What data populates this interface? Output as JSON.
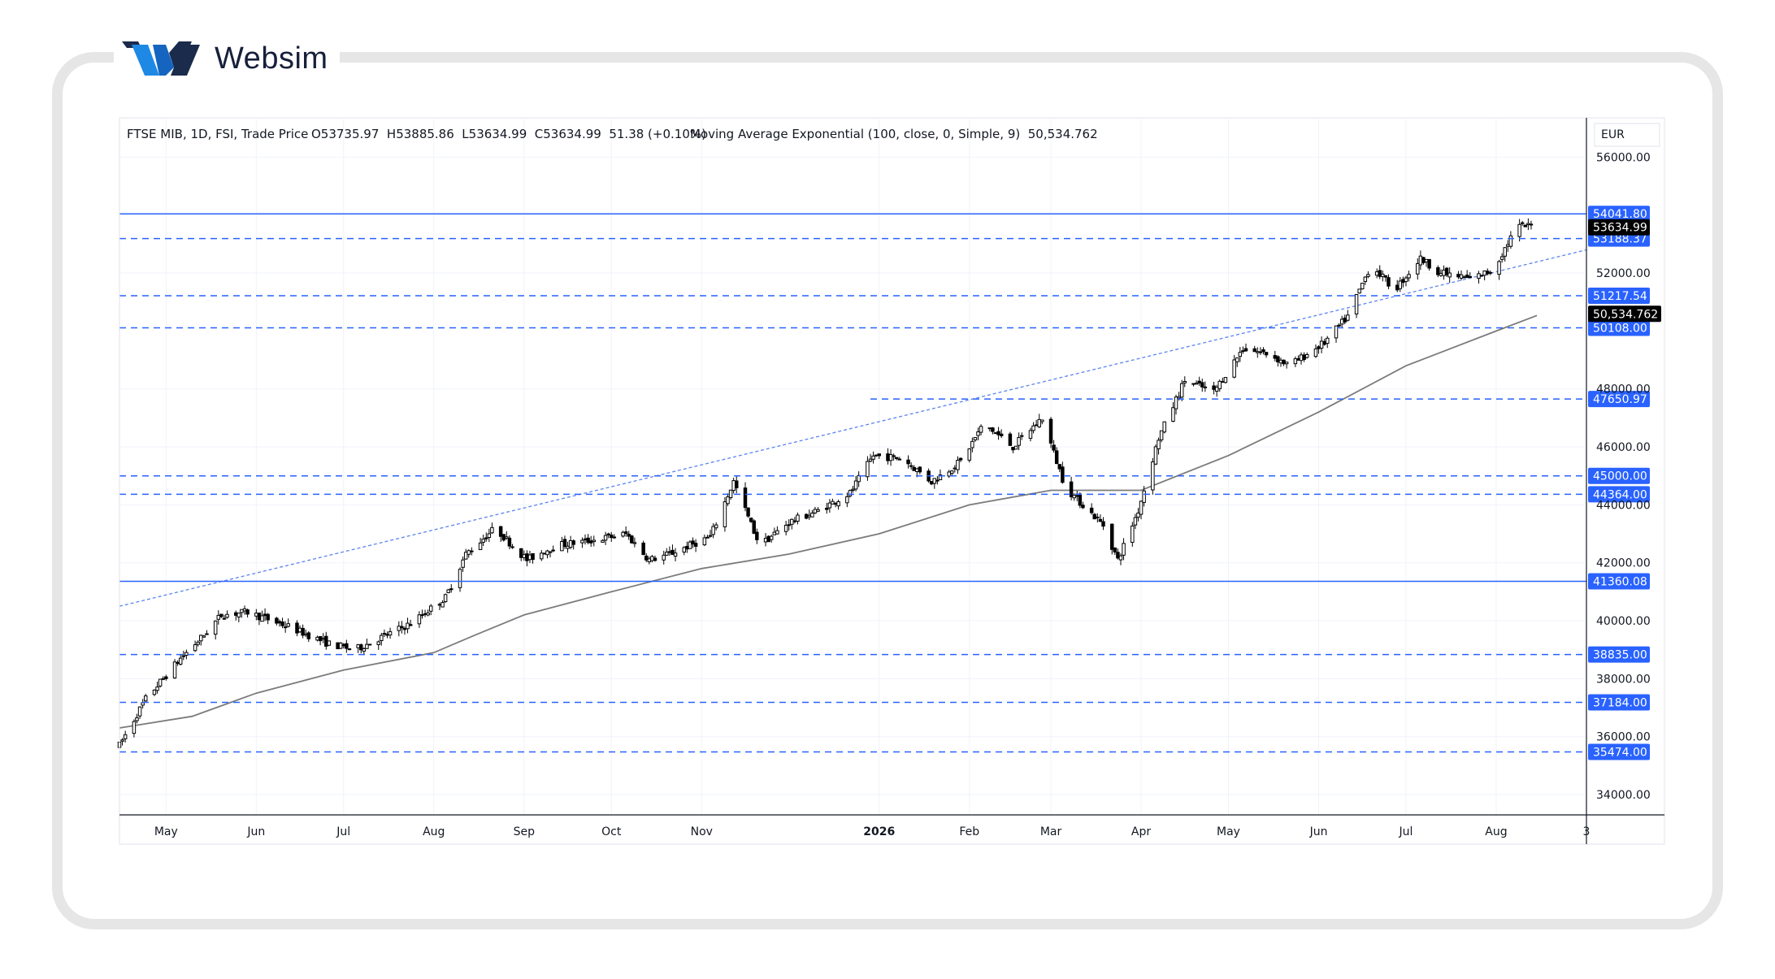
{
  "brand": {
    "name": "Websim"
  },
  "legend": {
    "symbol": "FTSE MIB, 1D, FSI, Trade Price",
    "ohlc": "O53735.97  H53885.86  L53634.99  C53634.99  51.38 (+0.10%)",
    "indicator": "Moving Average Exponential (100, close, 0, Simple, 9)  50,534.762"
  },
  "currency": "EUR",
  "colors": {
    "level_line": "#2962ff",
    "level_label_bg": "#2962ff",
    "price_label_bg": "#000000",
    "ema_line": "#7b7b7b",
    "trendline": "#5b84f0",
    "up_candle": "#ffffff",
    "down_candle": "#000000"
  },
  "chart_data": {
    "type": "candlestick",
    "y_axis": {
      "range": [
        33300,
        57300
      ],
      "ticks": [
        34000,
        36000,
        38000,
        40000,
        42000,
        44000,
        46000,
        48000,
        52000,
        56000
      ],
      "tick_labels": [
        "34000.00",
        "36000.00",
        "38000.00",
        "40000.00",
        "42000.00",
        "44000.00",
        "46000.00",
        "48000.00",
        "52000.00",
        "56000.00"
      ]
    },
    "x_axis": {
      "range": [
        "2025-04-15",
        "2026-09-01"
      ],
      "ticks": [
        {
          "date": "2025-05-01",
          "label": "May"
        },
        {
          "date": "2025-06-01",
          "label": "Jun"
        },
        {
          "date": "2025-07-01",
          "label": "Jul"
        },
        {
          "date": "2025-08-01",
          "label": "Aug"
        },
        {
          "date": "2025-09-01",
          "label": "Sep"
        },
        {
          "date": "2025-10-01",
          "label": "Oct"
        },
        {
          "date": "2025-11-01",
          "label": "Nov"
        },
        {
          "date": "2026-01-01",
          "label": "2026"
        },
        {
          "date": "2026-02-01",
          "label": "Feb"
        },
        {
          "date": "2026-03-01",
          "label": "Mar"
        },
        {
          "date": "2026-04-01",
          "label": "Apr"
        },
        {
          "date": "2026-05-01",
          "label": "May"
        },
        {
          "date": "2026-06-01",
          "label": "Jun"
        },
        {
          "date": "2026-07-01",
          "label": "Jul"
        },
        {
          "date": "2026-08-01",
          "label": "Aug"
        },
        {
          "date": "2026-09-01",
          "label": "3"
        }
      ]
    },
    "price_path": [
      [
        "2025-04-15",
        35700
      ],
      [
        "2025-04-24",
        37300
      ],
      [
        "2025-05-06",
        38700
      ],
      [
        "2025-05-14",
        39500
      ],
      [
        "2025-05-20",
        40200
      ],
      [
        "2025-05-29",
        40300
      ],
      [
        "2025-06-12",
        39800
      ],
      [
        "2025-06-26",
        39200
      ],
      [
        "2025-07-05",
        39000
      ],
      [
        "2025-07-24",
        39900
      ],
      [
        "2025-08-05",
        40800
      ],
      [
        "2025-08-12",
        42300
      ],
      [
        "2025-08-22",
        43200
      ],
      [
        "2025-09-02",
        42100
      ],
      [
        "2025-09-12",
        42600
      ],
      [
        "2025-09-26",
        42800
      ],
      [
        "2025-10-06",
        43000
      ],
      [
        "2025-10-14",
        42100
      ],
      [
        "2025-10-21",
        42300
      ],
      [
        "2025-11-04",
        42900
      ],
      [
        "2025-11-12",
        44800
      ],
      [
        "2025-11-21",
        42600
      ],
      [
        "2025-12-01",
        43400
      ],
      [
        "2025-12-11",
        43800
      ],
      [
        "2025-12-22",
        44400
      ],
      [
        "2025-12-30",
        45700
      ],
      [
        "2026-01-09",
        45600
      ],
      [
        "2026-01-19",
        44800
      ],
      [
        "2026-01-29",
        45500
      ],
      [
        "2026-02-06",
        46800
      ],
      [
        "2026-02-16",
        46000
      ],
      [
        "2026-02-26",
        47000
      ],
      [
        "2026-03-06",
        44600
      ],
      [
        "2026-03-19",
        43300
      ],
      [
        "2026-03-24",
        42100
      ],
      [
        "2026-03-31",
        43800
      ],
      [
        "2026-04-07",
        46300
      ],
      [
        "2026-04-16",
        48300
      ],
      [
        "2026-04-26",
        47900
      ],
      [
        "2026-05-06",
        49400
      ],
      [
        "2026-05-15",
        49200
      ],
      [
        "2026-05-22",
        48800
      ],
      [
        "2026-06-03",
        49600
      ],
      [
        "2026-06-11",
        50500
      ],
      [
        "2026-06-19",
        52300
      ],
      [
        "2026-06-27",
        51400
      ],
      [
        "2026-07-06",
        52500
      ],
      [
        "2026-07-13",
        52000
      ],
      [
        "2026-07-23",
        51800
      ],
      [
        "2026-07-31",
        52100
      ],
      [
        "2026-08-08",
        53600
      ],
      [
        "2026-08-15",
        53634.99
      ]
    ],
    "ema": [
      [
        "2025-04-15",
        36300
      ],
      [
        "2025-05-10",
        36700
      ],
      [
        "2025-06-01",
        37500
      ],
      [
        "2025-07-01",
        38300
      ],
      [
        "2025-08-01",
        38900
      ],
      [
        "2025-08-15",
        39500
      ],
      [
        "2025-09-01",
        40200
      ],
      [
        "2025-10-01",
        41000
      ],
      [
        "2025-11-01",
        41800
      ],
      [
        "2025-12-01",
        42300
      ],
      [
        "2026-01-01",
        43000
      ],
      [
        "2026-02-01",
        44000
      ],
      [
        "2026-03-01",
        44500
      ],
      [
        "2026-04-01",
        44500
      ],
      [
        "2026-05-01",
        45700
      ],
      [
        "2026-06-01",
        47200
      ],
      [
        "2026-07-01",
        48800
      ],
      [
        "2026-08-01",
        50000
      ],
      [
        "2026-08-15",
        50534.762
      ]
    ],
    "trendline": {
      "start": [
        "2025-04-15",
        40500
      ],
      "end": [
        "2026-09-01",
        52800
      ]
    },
    "horizontal_levels": [
      {
        "value": 54041.8,
        "label": "54041.80",
        "style": "solid",
        "from": "2025-04-15"
      },
      {
        "value": 53188.37,
        "label": "53188.37",
        "style": "dashed",
        "from": "2025-04-15"
      },
      {
        "value": 51217.54,
        "label": "51217.54",
        "style": "dashed",
        "from": "2025-04-15"
      },
      {
        "value": 50108.0,
        "label": "50108.00",
        "style": "dashed",
        "from": "2025-04-15"
      },
      {
        "value": 47650.97,
        "label": "47650.97",
        "style": "dashed",
        "from": "2025-12-29"
      },
      {
        "value": 45000.0,
        "label": "45000.00",
        "style": "dashed",
        "from": "2025-04-15"
      },
      {
        "value": 44364.0,
        "label": "44364.00",
        "style": "dashed",
        "from": "2025-04-15"
      },
      {
        "value": 41360.08,
        "label": "41360.08",
        "style": "solid",
        "from": "2025-04-15"
      },
      {
        "value": 38835.0,
        "label": "38835.00",
        "style": "dashed",
        "from": "2025-04-15"
      },
      {
        "value": 37184.0,
        "label": "37184.00",
        "style": "dashed",
        "from": "2025-04-15"
      },
      {
        "value": 35474.0,
        "label": "35474.00",
        "style": "dashed",
        "from": "2025-04-15"
      }
    ],
    "last_price": {
      "value": 53634.99,
      "label": "53634.99"
    },
    "ema_last": {
      "value": 50534.762,
      "label": "50,534.762"
    }
  }
}
